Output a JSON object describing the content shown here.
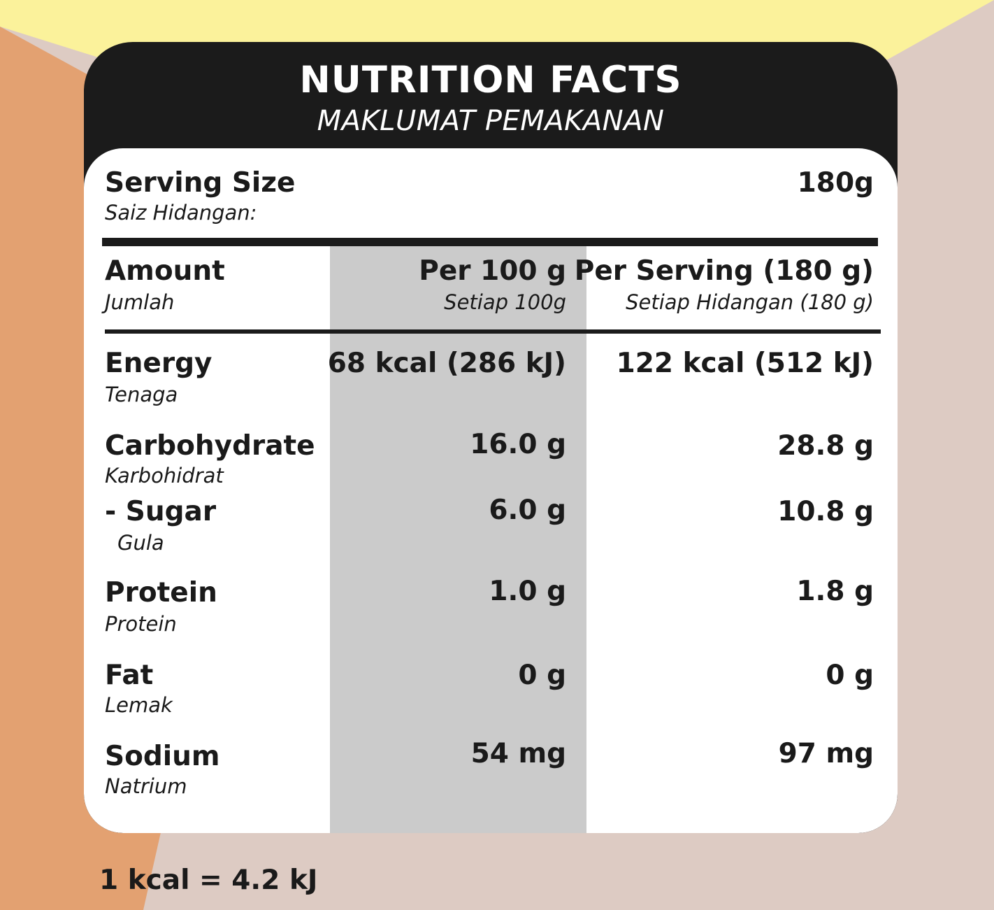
{
  "header": {
    "title": "NUTRITION FACTS",
    "subtitle": "MAKLUMAT PEMAKANAN"
  },
  "serving": {
    "label": "Serving Size",
    "label_ms": "Saiz Hidangan:",
    "value": "180g"
  },
  "columns": {
    "amount": "Amount",
    "amount_ms": "Jumlah",
    "per100": "Per 100 g",
    "per100_ms": "Setiap 100g",
    "perserving": "Per Serving (180 g)",
    "perserving_ms": "Setiap Hidangan (180 g)"
  },
  "rows": [
    {
      "name": "Energy",
      "name_ms": "Tenaga",
      "per100": "68 kcal (286 kJ)",
      "perserving": "122 kcal (512 kJ)"
    },
    {
      "name": "Carbohydrate",
      "name_ms": "Karbohidrat",
      "per100": "16.0 g",
      "perserving": "28.8 g"
    },
    {
      "name": "- Sugar",
      "name_ms": "Gula",
      "per100": "6.0 g",
      "perserving": "10.8 g"
    },
    {
      "name": "Protein",
      "name_ms": "Protein",
      "per100": "1.0 g",
      "perserving": "1.8 g"
    },
    {
      "name": "Fat",
      "name_ms": "Lemak",
      "per100": "0 g",
      "perserving": "0 g"
    },
    {
      "name": "Sodium",
      "name_ms": "Natrium",
      "per100": "54 mg",
      "perserving": "97 mg"
    }
  ],
  "footer": {
    "note": "1 kcal = 4.2 kJ"
  },
  "colors": {
    "background": "#ddcbc3",
    "orange": "#e3a171",
    "yellow": "#fbf29b",
    "panel": "#1b1b1b",
    "shade": "#cbcbcb"
  }
}
